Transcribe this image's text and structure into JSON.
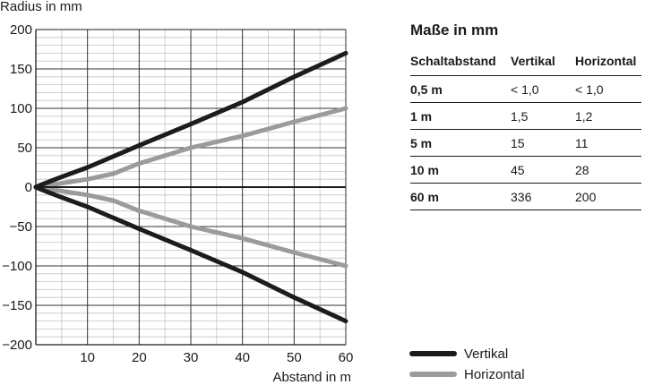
{
  "chart_data": {
    "type": "line",
    "ylabel": "Radius in mm",
    "xlabel": "Abstand in m",
    "xlim": [
      0,
      60
    ],
    "ylim": [
      -200,
      200
    ],
    "x_ticks": [
      10,
      20,
      30,
      40,
      50,
      60
    ],
    "y_ticks": [
      200,
      150,
      100,
      50,
      0,
      -50,
      -100,
      -150,
      -200
    ],
    "y_tick_labels": [
      "200",
      "150",
      "100",
      "50",
      "0",
      "−50",
      "−100",
      "−150",
      "−200"
    ],
    "grid": true,
    "legend_position": "bottom-right",
    "series": [
      {
        "name": "Vertikal",
        "color": "#1c1c1c",
        "x": [
          0,
          1,
          3,
          5,
          10,
          20,
          30,
          40,
          50,
          60
        ],
        "y": [
          0,
          3,
          8,
          13,
          25,
          53,
          80,
          108,
          140,
          170
        ]
      },
      {
        "name": "Vertikal",
        "color": "#1c1c1c",
        "x": [
          0,
          1,
          3,
          5,
          10,
          20,
          30,
          40,
          50,
          60
        ],
        "y": [
          0,
          -3,
          -8,
          -13,
          -25,
          -53,
          -80,
          -108,
          -140,
          -170
        ]
      },
      {
        "name": "Horizontal",
        "color": "#9b9b9b",
        "x": [
          0,
          1,
          3,
          5,
          10,
          15,
          20,
          30,
          40,
          50,
          60
        ],
        "y": [
          0,
          1,
          3,
          5,
          10,
          17,
          30,
          50,
          65,
          83,
          100
        ]
      },
      {
        "name": "Horizontal",
        "color": "#9b9b9b",
        "x": [
          0,
          1,
          3,
          5,
          10,
          15,
          20,
          30,
          40,
          50,
          60
        ],
        "y": [
          0,
          -1,
          -3,
          -5,
          -10,
          -17,
          -30,
          -50,
          -65,
          -83,
          -100
        ]
      }
    ],
    "legend": [
      {
        "label": "Vertikal",
        "color": "#1c1c1c"
      },
      {
        "label": "Horizontal",
        "color": "#9b9b9b"
      }
    ]
  },
  "table": {
    "title": "Maße in mm",
    "headers": [
      "Schaltabstand",
      "Vertikal",
      "Horizontal"
    ],
    "rows": [
      [
        "0,5 m",
        "< 1,0",
        "< 1,0"
      ],
      [
        "1 m",
        "1,5",
        "1,2"
      ],
      [
        "5 m",
        "15",
        "11"
      ],
      [
        "10 m",
        "45",
        "28"
      ],
      [
        "60 m",
        "336",
        "200"
      ]
    ]
  }
}
